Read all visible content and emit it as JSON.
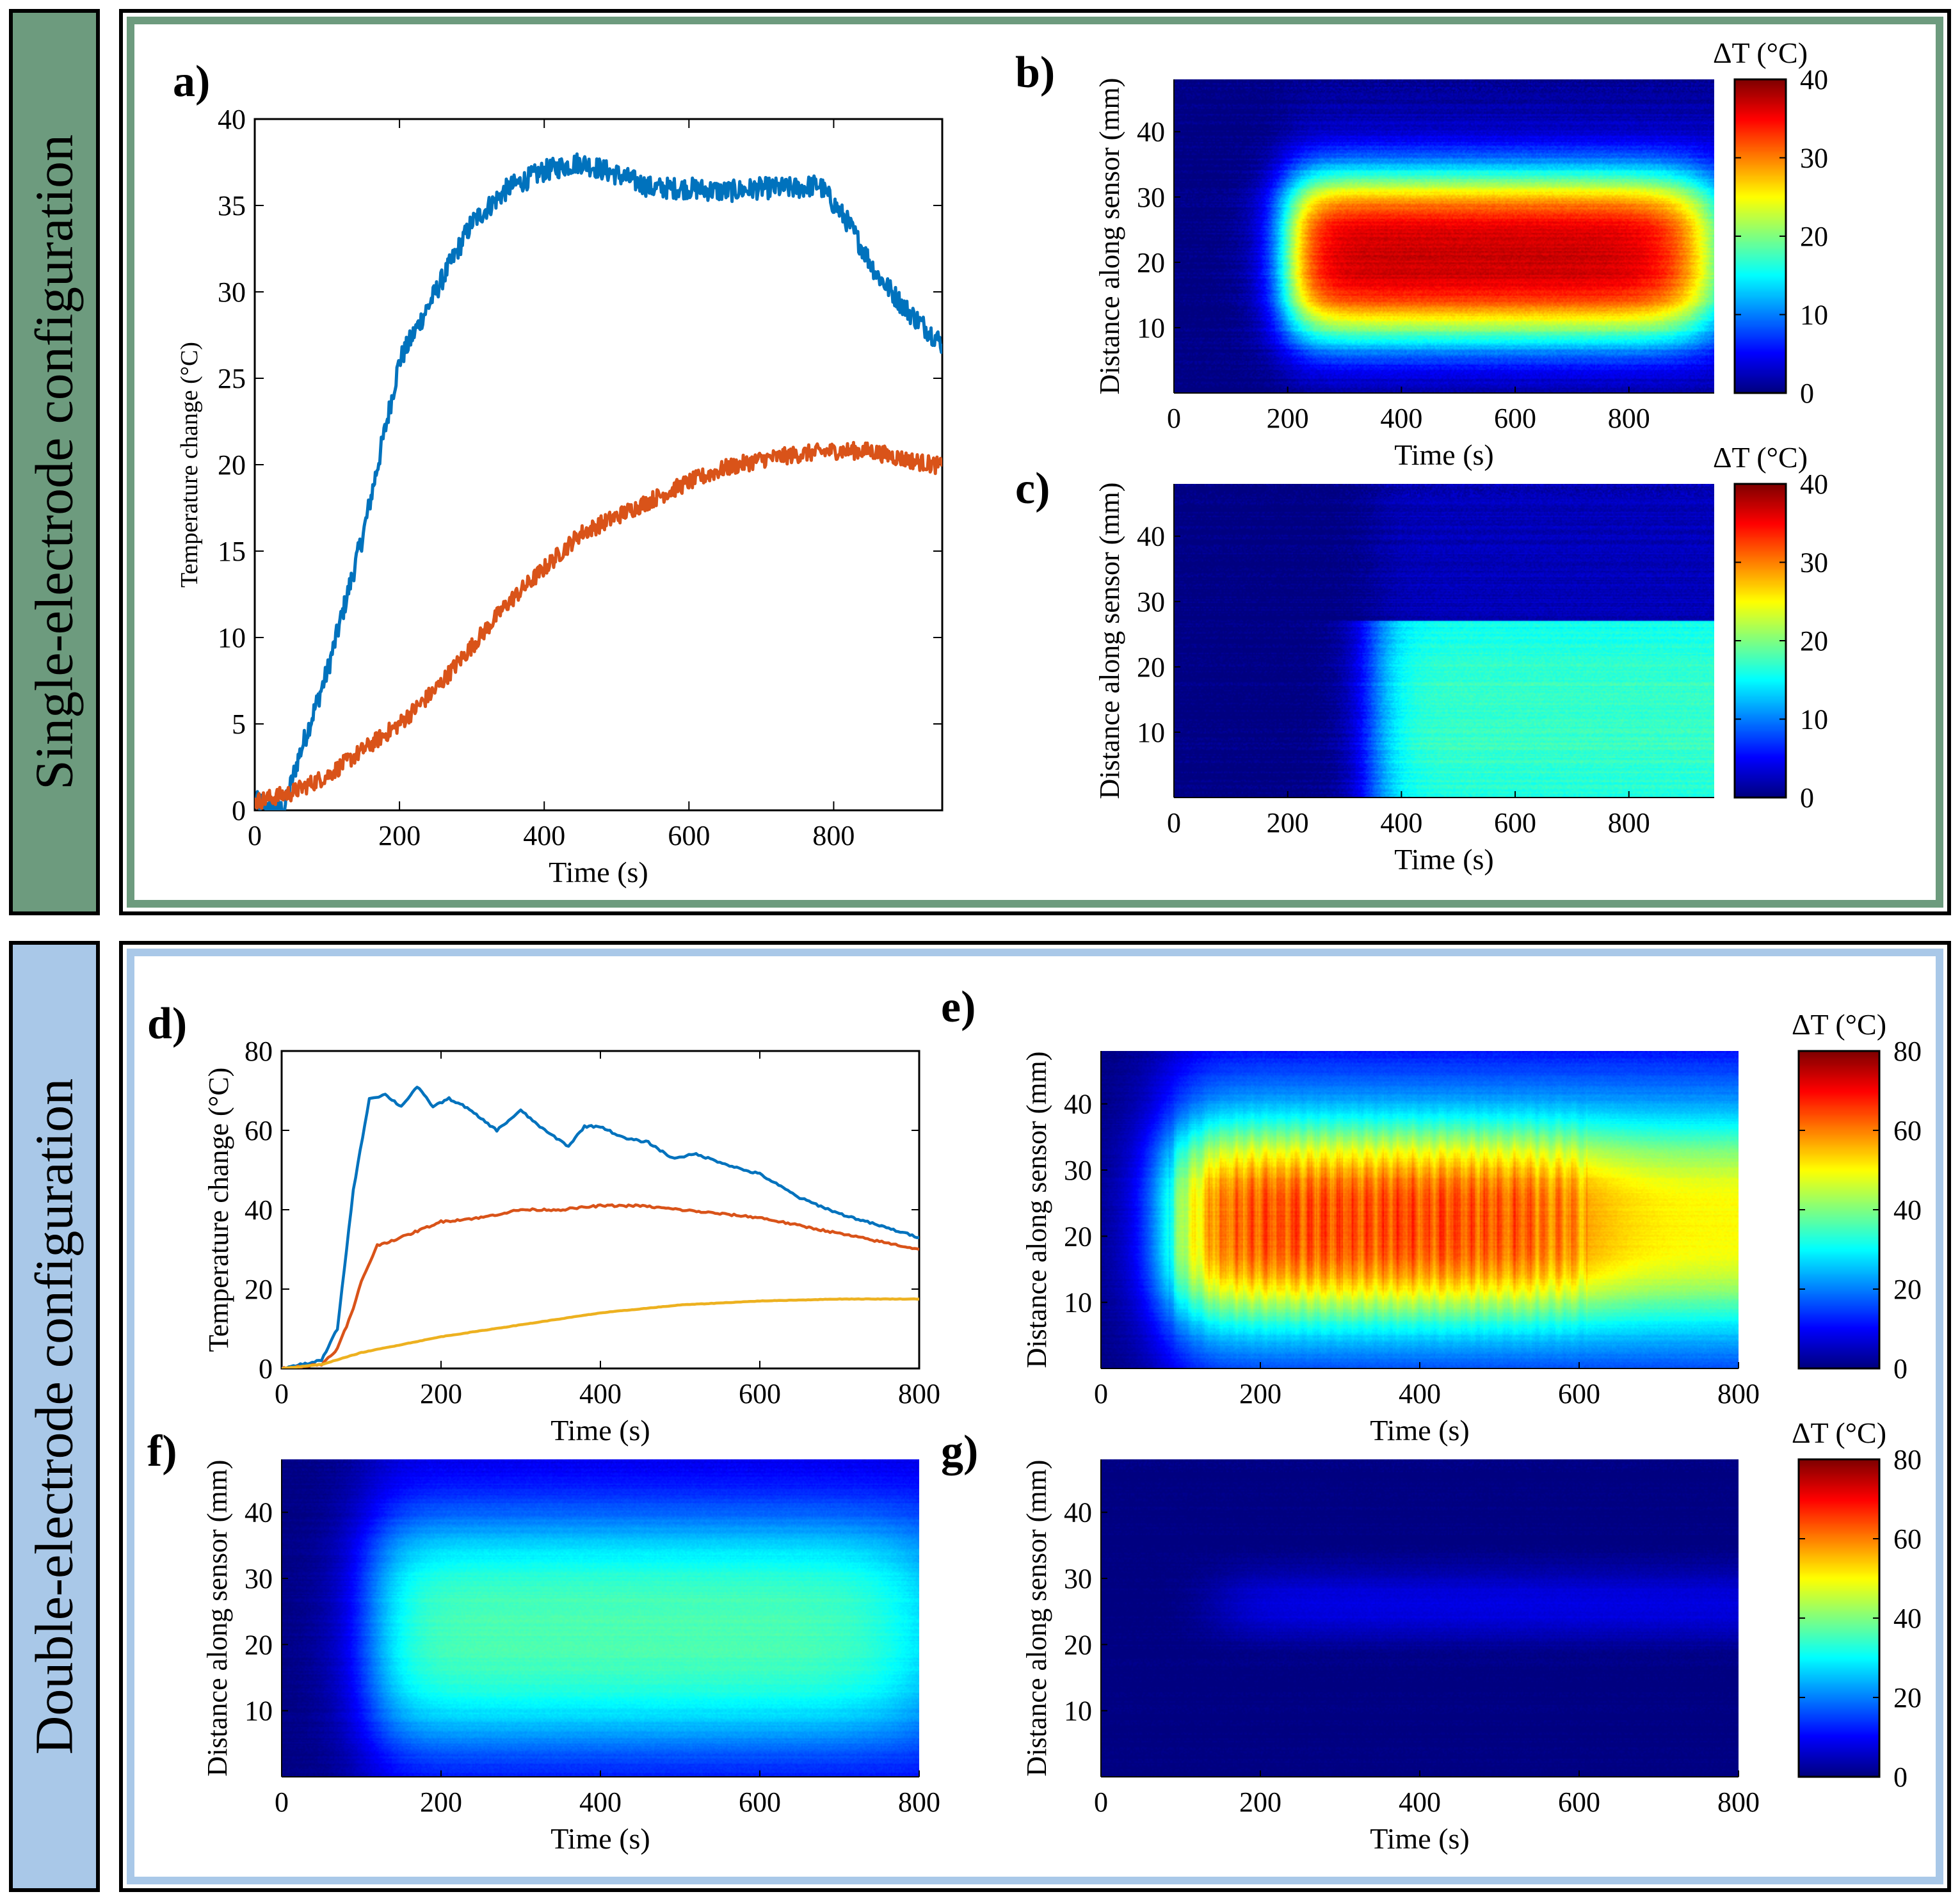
{
  "sections": [
    {
      "label": "Single-electrode configuration",
      "fill": "#6d9b7e"
    },
    {
      "label": "Double-electrode configuration",
      "fill": "#a9c8e8"
    }
  ],
  "colors": {
    "blue": "#0072BD",
    "orange": "#D95319",
    "yellow": "#EDB120"
  },
  "chart_data": [
    {
      "id": "a",
      "panel_label": "a)",
      "type": "line",
      "xlabel": "Time (s)",
      "ylabel": "Temperature change (°C)",
      "xlim": [
        0,
        950
      ],
      "ylim": [
        0,
        40
      ],
      "xticks": [
        0,
        200,
        400,
        600,
        800
      ],
      "yticks": [
        0,
        5,
        10,
        15,
        20,
        25,
        30,
        35,
        40
      ],
      "series": [
        {
          "name": "blue",
          "color": "#0072BD",
          "x": [
            0,
            40,
            60,
            100,
            150,
            200,
            250,
            300,
            350,
            400,
            450,
            500,
            550,
            600,
            650,
            700,
            750,
            780,
            820,
            860,
            900,
            950
          ],
          "y": [
            0.5,
            0,
            3,
            8,
            16,
            26,
            30,
            34,
            36,
            37,
            37.5,
            36.8,
            36,
            36,
            35.8,
            36,
            36,
            36.2,
            34,
            31,
            29,
            27
          ]
        },
        {
          "name": "orange",
          "color": "#D95319",
          "x": [
            0,
            50,
            100,
            150,
            200,
            250,
            300,
            350,
            400,
            450,
            500,
            550,
            600,
            650,
            700,
            750,
            800,
            850,
            900,
            950
          ],
          "y": [
            0.5,
            1,
            2,
            3.5,
            5,
            7,
            9.5,
            12,
            14,
            16,
            17,
            18,
            19,
            19.8,
            20.3,
            20.6,
            20.8,
            20.8,
            20.3,
            19.9
          ]
        }
      ]
    },
    {
      "id": "b",
      "panel_label": "b)",
      "type": "heatmap",
      "xlabel": "Time (s)",
      "ylabel": "Distance along sensor (mm)",
      "xlim": [
        0,
        950
      ],
      "ylim": [
        0,
        48
      ],
      "xticks": [
        0,
        200,
        400,
        600,
        800
      ],
      "yticks": [
        10,
        20,
        30,
        40
      ],
      "colorbar": {
        "label": "ΔT (°C)",
        "min": 0,
        "max": 40,
        "ticks": [
          0,
          10,
          20,
          30,
          40
        ]
      },
      "field": {
        "peak": 37,
        "center_mm": 21,
        "half_width_mm": 13,
        "onset_s": 200,
        "end_s": 950,
        "background": 3,
        "late_decay": 0
      }
    },
    {
      "id": "c",
      "panel_label": "c)",
      "type": "heatmap",
      "xlabel": "Time (s)",
      "ylabel": "Distance along sensor (mm)",
      "xlim": [
        0,
        950
      ],
      "ylim": [
        0,
        48
      ],
      "xticks": [
        0,
        200,
        400,
        600,
        800
      ],
      "yticks": [
        10,
        20,
        30,
        40
      ],
      "colorbar": {
        "label": "ΔT (°C)",
        "min": 0,
        "max": 40,
        "ticks": [
          0,
          10,
          20,
          30,
          40
        ]
      },
      "field": {
        "peak": 16,
        "center_mm": 12,
        "half_width_mm": 16,
        "onset_s": 350,
        "end_s": 950,
        "background": 3,
        "late_decay": 0,
        "cutoff_mm": 27
      }
    },
    {
      "id": "d",
      "panel_label": "d)",
      "type": "line",
      "xlabel": "Time (s)",
      "ylabel": "Temperature change (°C)",
      "xlim": [
        0,
        800
      ],
      "ylim": [
        0,
        80
      ],
      "xticks": [
        0,
        200,
        400,
        600,
        800
      ],
      "yticks": [
        0,
        20,
        40,
        60,
        80
      ],
      "series": [
        {
          "name": "blue",
          "color": "#0072BD",
          "x": [
            0,
            50,
            70,
            90,
            110,
            130,
            150,
            170,
            190,
            210,
            230,
            250,
            270,
            300,
            330,
            360,
            380,
            400,
            430,
            460,
            490,
            520,
            550,
            580,
            600,
            650,
            700,
            750,
            800
          ],
          "y": [
            0,
            2,
            10,
            45,
            68,
            69,
            66,
            71,
            66,
            68,
            66,
            63,
            60,
            65,
            60,
            56,
            61,
            61,
            58,
            57,
            53,
            54,
            52,
            50,
            49,
            43,
            39,
            36,
            33
          ]
        },
        {
          "name": "orange",
          "color": "#D95319",
          "x": [
            0,
            50,
            70,
            90,
            100,
            120,
            150,
            200,
            250,
            300,
            350,
            400,
            450,
            500,
            550,
            600,
            650,
            700,
            750,
            800
          ],
          "y": [
            0,
            1,
            5,
            15,
            22,
            31,
            33,
            37,
            38,
            40,
            40,
            41,
            41,
            40,
            39,
            38,
            36,
            34,
            32,
            30
          ]
        },
        {
          "name": "yellow",
          "color": "#EDB120",
          "x": [
            0,
            50,
            100,
            150,
            200,
            300,
            400,
            500,
            600,
            700,
            800
          ],
          "y": [
            0,
            1,
            4,
            6,
            8,
            11,
            14,
            16,
            17,
            17.5,
            17.5
          ]
        }
      ]
    },
    {
      "id": "e",
      "panel_label": "e)",
      "type": "heatmap",
      "xlabel": "Time (s)",
      "ylabel": "Distance along sensor (mm)",
      "xlim": [
        0,
        800
      ],
      "ylim": [
        0,
        48
      ],
      "xticks": [
        0,
        200,
        400,
        600,
        800
      ],
      "yticks": [
        10,
        20,
        30,
        40
      ],
      "colorbar": {
        "label": "ΔT (°C)",
        "min": 0,
        "max": 80,
        "ticks": [
          0,
          20,
          40,
          60,
          80
        ]
      },
      "field": {
        "peak": 64,
        "center_mm": 22,
        "half_width_mm": 14,
        "onset_s": 85,
        "end_s": 610,
        "background": 30,
        "late_decay": 20,
        "stripes": true
      }
    },
    {
      "id": "f",
      "panel_label": "f)",
      "type": "heatmap",
      "xlabel": "Time (s)",
      "ylabel": "Distance along sensor (mm)",
      "xlim": [
        0,
        800
      ],
      "ylim": [
        0,
        48
      ],
      "xticks": [
        0,
        200,
        400,
        600,
        800
      ],
      "yticks": [
        10,
        20,
        30,
        40
      ],
      "colorbar": null,
      "field": {
        "peak": 36,
        "center_mm": 22,
        "half_width_mm": 17,
        "onset_s": 110,
        "end_s": 800,
        "background": 14,
        "late_decay": 6
      }
    },
    {
      "id": "g",
      "panel_label": "g)",
      "type": "heatmap",
      "xlabel": "Time (s)",
      "ylabel": "Distance along sensor (mm)",
      "xlim": [
        0,
        800
      ],
      "ylim": [
        0,
        48
      ],
      "xticks": [
        0,
        200,
        400,
        600,
        800
      ],
      "yticks": [
        10,
        20,
        30,
        40
      ],
      "colorbar": {
        "label": "ΔT (°C)",
        "min": 0,
        "max": 80,
        "ticks": [
          0,
          20,
          40,
          60,
          80
        ]
      },
      "field": {
        "peak": 8,
        "center_mm": 26,
        "half_width_mm": 3,
        "onset_s": 150,
        "end_s": 800,
        "background": 7,
        "late_decay": 0
      }
    }
  ]
}
